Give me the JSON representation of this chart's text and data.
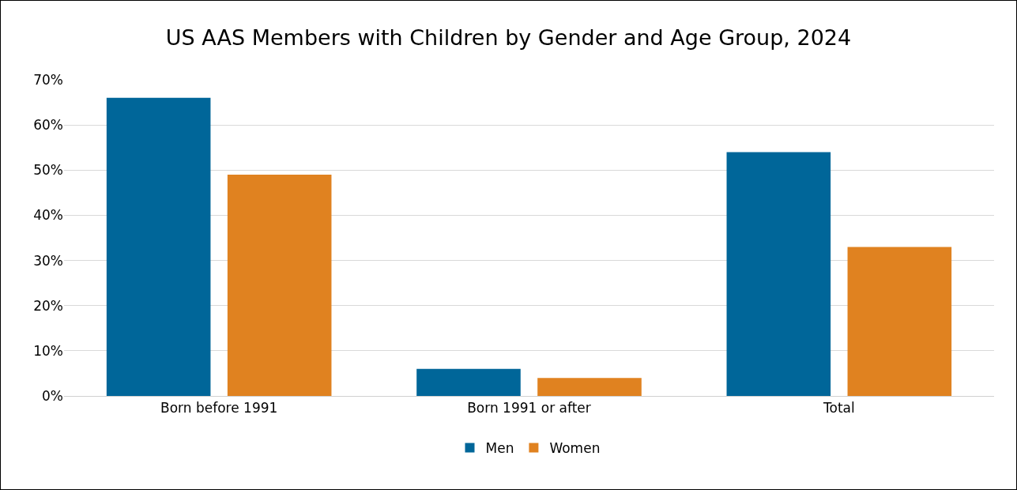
{
  "chart_data": {
    "type": "bar",
    "title": "US AAS Members with Children by Gender and Age Group, 2024",
    "categories": [
      "Born before 1991",
      "Born 1991 or after",
      "Total"
    ],
    "series": [
      {
        "name": "Men",
        "color": "#006699",
        "values": [
          66,
          6,
          54
        ]
      },
      {
        "name": "Women",
        "color": "#e08220",
        "values": [
          49,
          4,
          33
        ]
      }
    ],
    "ylim": [
      0,
      70
    ],
    "yticks": [
      {
        "value": 0,
        "label": "0%"
      },
      {
        "value": 10,
        "label": "10%"
      },
      {
        "value": 20,
        "label": "20%"
      },
      {
        "value": 30,
        "label": "30%"
      },
      {
        "value": 40,
        "label": "40%"
      },
      {
        "value": 50,
        "label": "50%"
      },
      {
        "value": 60,
        "label": "60%"
      },
      {
        "value": 70,
        "label": "70%"
      }
    ],
    "grid": "y",
    "legend": "bottom"
  }
}
